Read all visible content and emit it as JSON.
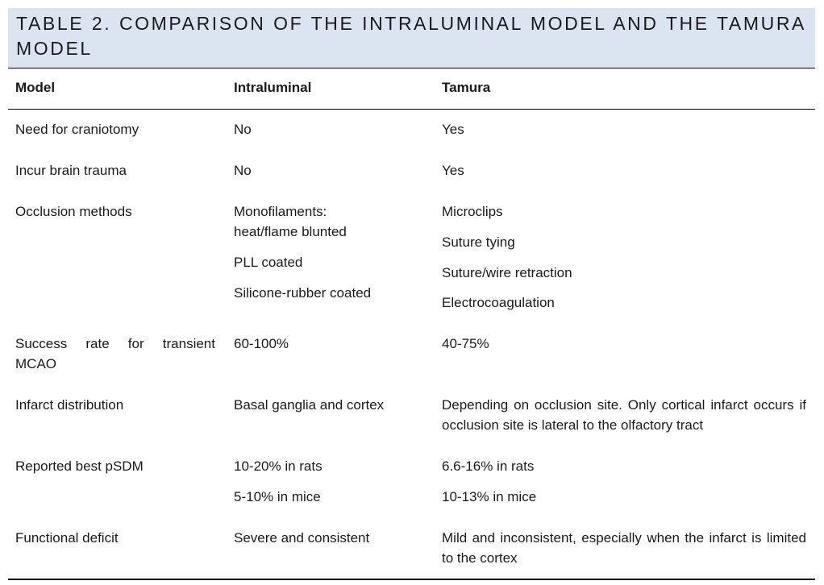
{
  "title": "TABLE 2. COMPARISON OF THE INTRALUMINAL MODEL AND THE TAMURA MODEL",
  "columns": [
    "Model",
    "Intraluminal",
    "Tamura"
  ],
  "rows": [
    {
      "label": "Need for craniotomy",
      "intraluminal": [
        "No"
      ],
      "tamura": [
        "Yes"
      ]
    },
    {
      "label": "Incur brain trauma",
      "intraluminal": [
        "No"
      ],
      "tamura": [
        "Yes"
      ]
    },
    {
      "label": "Occlusion methods",
      "intraluminal": [
        "Monofilaments:",
        "heat/flame blunted",
        "PLL coated",
        "Silicone-rubber coated"
      ],
      "tamura": [
        "Microclips",
        "Suture tying",
        "Suture/wire retraction",
        "Electrocoagulation"
      ]
    },
    {
      "label": "Success rate for transient MCAO",
      "intraluminal": [
        "60-100%"
      ],
      "tamura": [
        "40-75%"
      ]
    },
    {
      "label": "Infarct distribution",
      "intraluminal": [
        "Basal ganglia and cortex"
      ],
      "tamura": [
        "Depending on occlusion site. Only cortical infarct occurs if occlusion site is lateral to the olfactory tract"
      ]
    },
    {
      "label": "Reported best pSDM",
      "intraluminal": [
        "10-20% in rats",
        "5-10% in mice"
      ],
      "tamura": [
        "6.6-16% in rats",
        "10-13% in mice"
      ]
    },
    {
      "label": "Functional deficit",
      "intraluminal": [
        "Severe and consistent"
      ],
      "tamura": [
        "Mild and inconsistent, especially when the infarct is limited to the cortex"
      ]
    }
  ]
}
